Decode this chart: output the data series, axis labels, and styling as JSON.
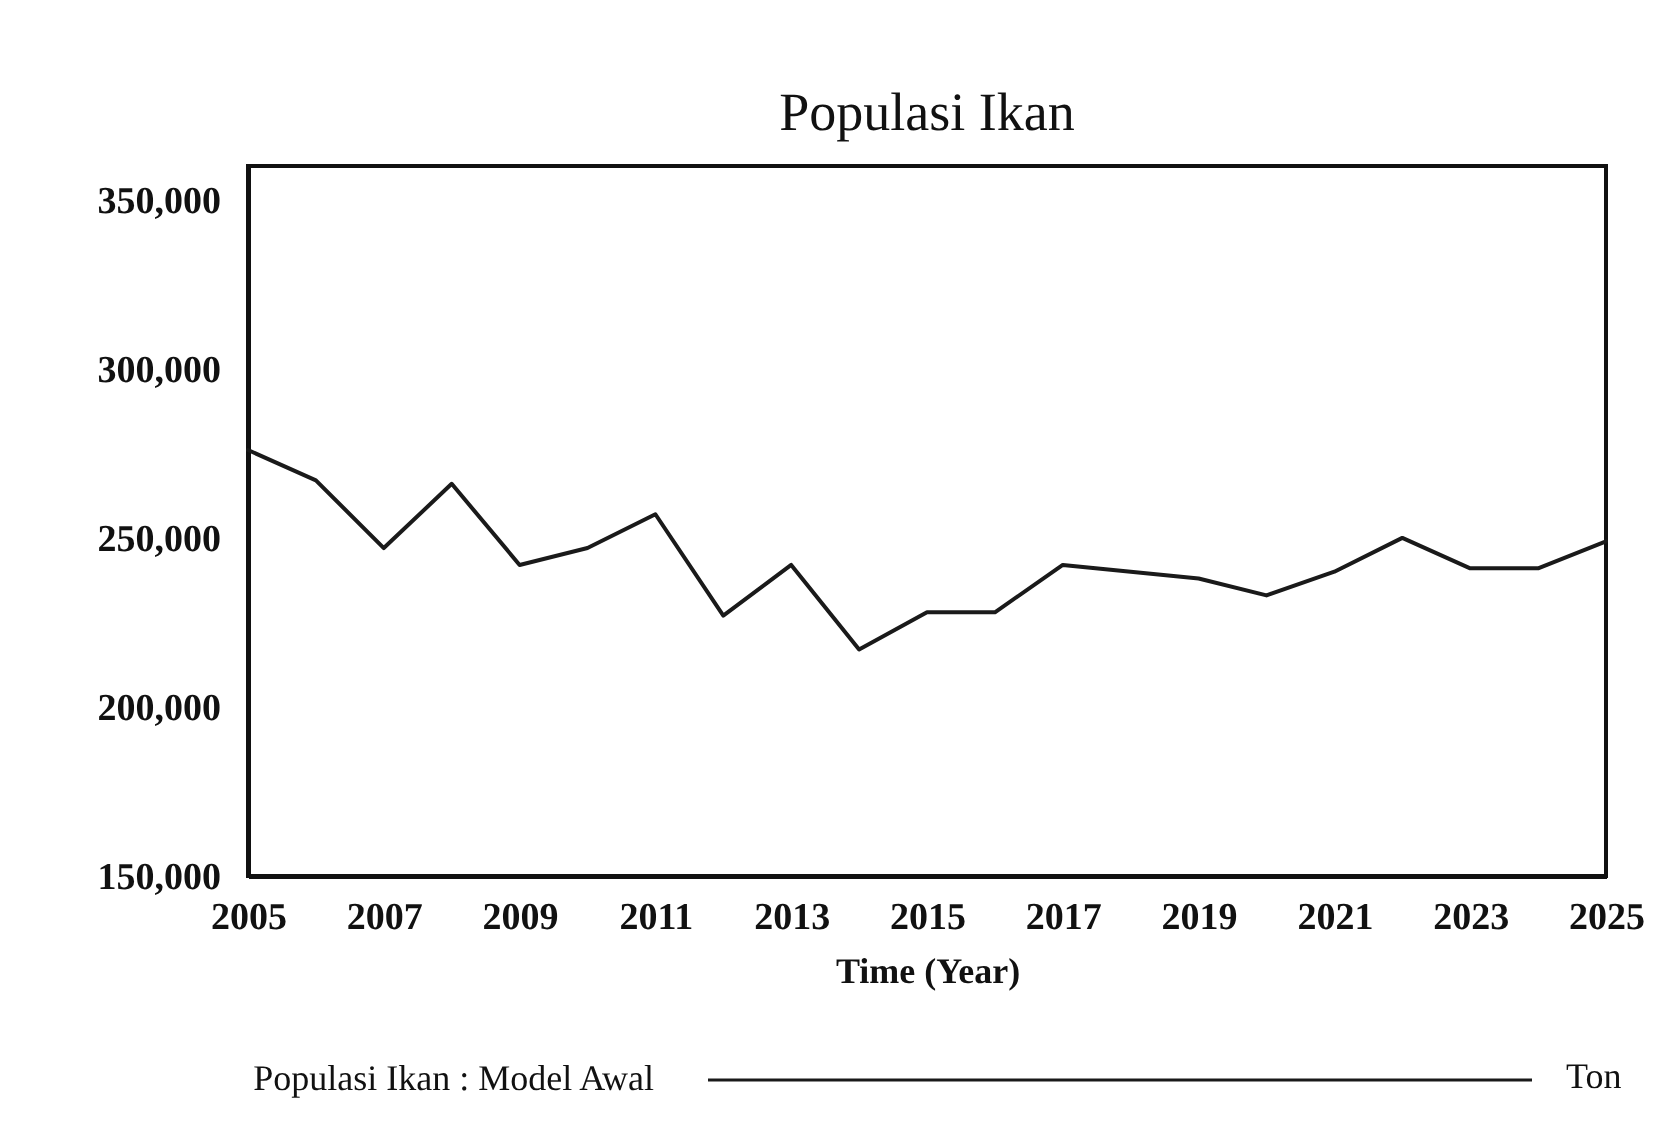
{
  "chart_data": {
    "type": "line",
    "title": "Populasi Ikan",
    "xlabel": "Time (Year)",
    "x": [
      2005,
      2006,
      2007,
      2008,
      2009,
      2010,
      2011,
      2012,
      2013,
      2014,
      2015,
      2016,
      2017,
      2018,
      2019,
      2020,
      2021,
      2022,
      2023,
      2024,
      2025
    ],
    "series": [
      {
        "name": "Populasi Ikan : Model Awal",
        "color": "#1a1a1a",
        "values": [
          276000,
          267000,
          247000,
          266000,
          242000,
          247000,
          257000,
          227000,
          242000,
          217000,
          228000,
          228000,
          242000,
          240000,
          238000,
          233000,
          240000,
          250000,
          241000,
          241000,
          249000
        ]
      }
    ],
    "xlim": [
      2005,
      2025
    ],
    "xticks": [
      2005,
      2007,
      2009,
      2011,
      2013,
      2015,
      2017,
      2019,
      2021,
      2023,
      2025
    ],
    "ylim": [
      150000,
      360000
    ],
    "yticks": [
      {
        "value": 150000,
        "label": "150,000"
      },
      {
        "value": 200000,
        "label": "200,000"
      },
      {
        "value": 250000,
        "label": "250,000"
      },
      {
        "value": 300000,
        "label": "300,000"
      },
      {
        "value": 350000,
        "label": "350,000"
      }
    ],
    "legend": "bottom",
    "annotations": [
      "Ton"
    ]
  }
}
